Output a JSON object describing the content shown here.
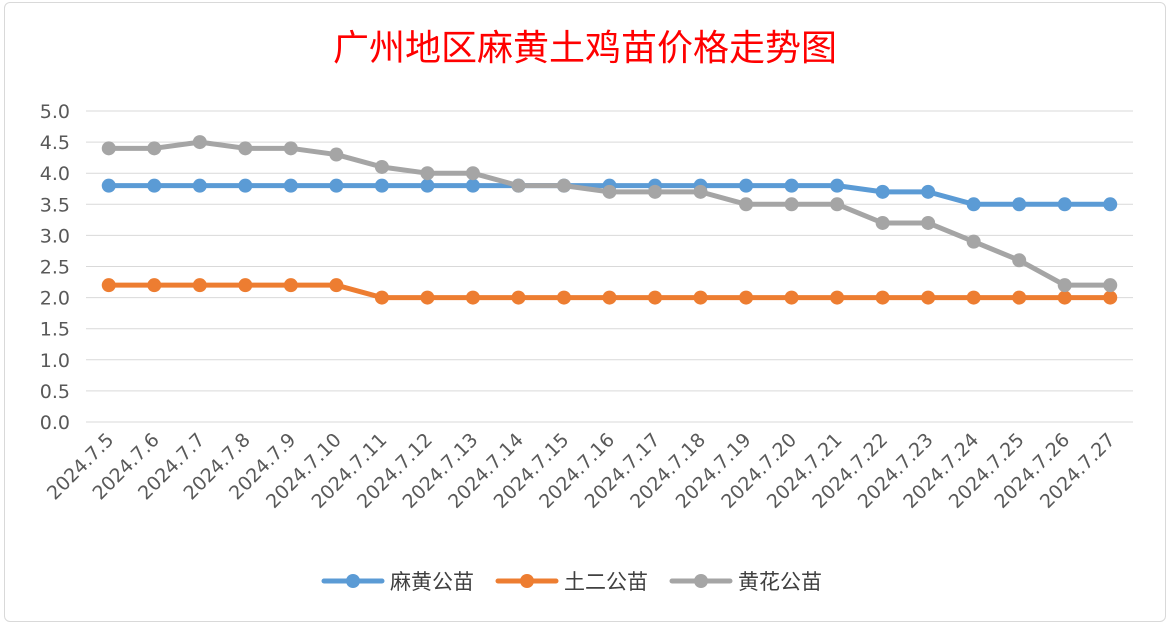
{
  "chart_data": {
    "type": "line",
    "title": "广州地区麻黄土鸡苗价格走势图",
    "xlabel": "",
    "ylabel": "",
    "ylim": [
      0,
      5
    ],
    "yticks": [
      "0.0",
      "0.5",
      "1.0",
      "1.5",
      "2.0",
      "2.5",
      "3.0",
      "3.5",
      "4.0",
      "4.5",
      "5.0"
    ],
    "grid": "horizontal",
    "legend": "bottom",
    "categories": [
      "2024.7.5",
      "2024.7.6",
      "2024.7.7",
      "2024.7.8",
      "2024.7.9",
      "2024.7.10",
      "2024.7.11",
      "2024.7.12",
      "2024.7.13",
      "2024.7.14",
      "2024.7.15",
      "2024.7.16",
      "2024.7.17",
      "2024.7.18",
      "2024.7.19",
      "2024.7.20",
      "2024.7.21",
      "2024.7.22",
      "2024.7.23",
      "2024.7.24",
      "2024.7.25",
      "2024.7.26",
      "2024.7.27"
    ],
    "series": [
      {
        "name": "麻黄公苗",
        "color": "#5b9bd5",
        "values": [
          3.8,
          3.8,
          3.8,
          3.8,
          3.8,
          3.8,
          3.8,
          3.8,
          3.8,
          3.8,
          3.8,
          3.8,
          3.8,
          3.8,
          3.8,
          3.8,
          3.8,
          3.7,
          3.7,
          3.5,
          3.5,
          3.5,
          3.5
        ]
      },
      {
        "name": "土二公苗",
        "color": "#ed7d31",
        "values": [
          2.2,
          2.2,
          2.2,
          2.2,
          2.2,
          2.2,
          2.0,
          2.0,
          2.0,
          2.0,
          2.0,
          2.0,
          2.0,
          2.0,
          2.0,
          2.0,
          2.0,
          2.0,
          2.0,
          2.0,
          2.0,
          2.0,
          2.0
        ]
      },
      {
        "name": "黄花公苗",
        "color": "#a5a5a5",
        "values": [
          4.4,
          4.4,
          4.5,
          4.4,
          4.4,
          4.3,
          4.1,
          4.0,
          4.0,
          3.8,
          3.8,
          3.7,
          3.7,
          3.7,
          3.5,
          3.5,
          3.5,
          3.2,
          3.2,
          2.9,
          2.6,
          2.2,
          2.2
        ]
      }
    ]
  }
}
